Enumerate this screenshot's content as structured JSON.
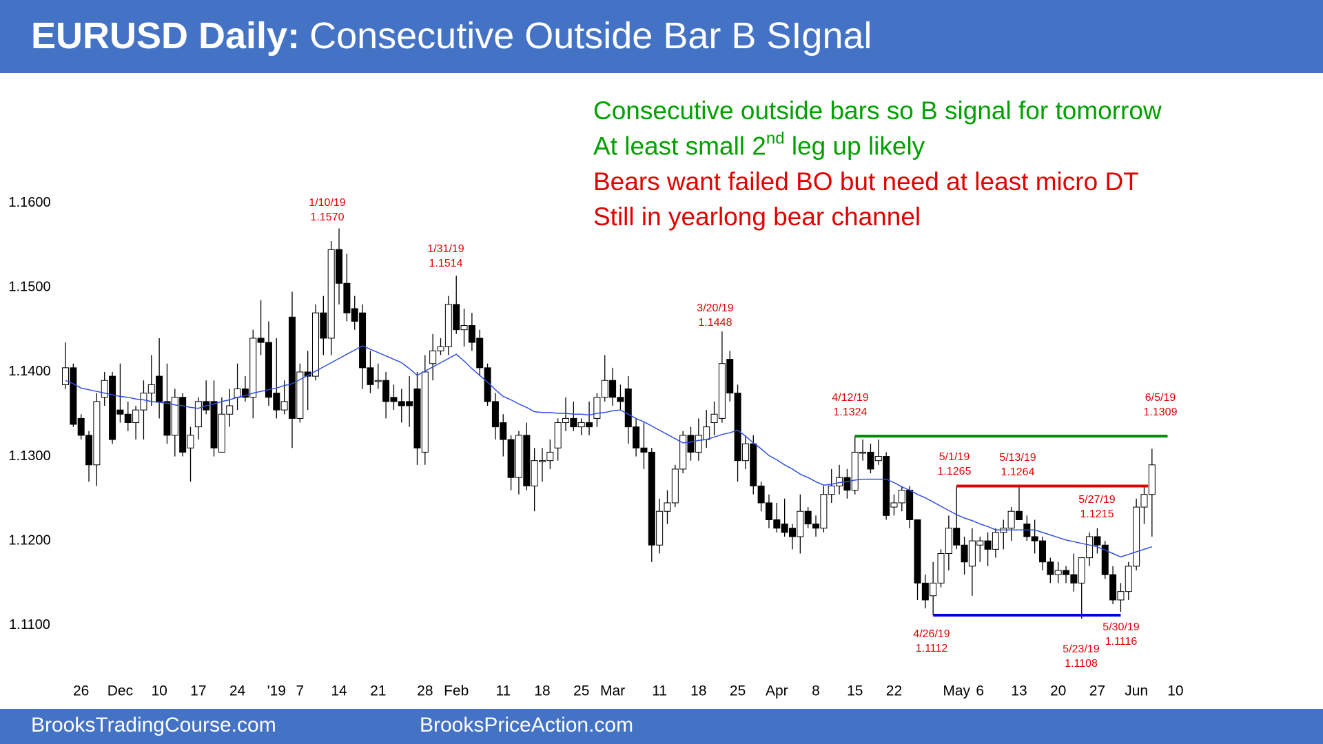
{
  "header": {
    "bold": "EURUSD Daily:",
    "rest": "Consecutive Outside Bar B SIgnal"
  },
  "footer": {
    "left": "BrooksTradingCourse.com",
    "right": "BrooksPriceAction.com"
  },
  "chart_data": {
    "type": "candlestick",
    "up_color": "#ffffff",
    "down_color": "#000000",
    "categories": [
      null,
      null,
      "26",
      null,
      null,
      null,
      null,
      "Dec",
      null,
      null,
      null,
      null,
      "10",
      null,
      null,
      null,
      null,
      "17",
      null,
      null,
      null,
      null,
      "24",
      null,
      null,
      null,
      null,
      "'19",
      null,
      null,
      "7",
      null,
      null,
      null,
      null,
      "14",
      null,
      null,
      null,
      null,
      "21",
      null,
      null,
      null,
      null,
      null,
      "28",
      null,
      null,
      null,
      "Feb",
      null,
      null,
      null,
      null,
      null,
      "11",
      null,
      null,
      null,
      null,
      "18",
      null,
      null,
      null,
      null,
      "25",
      null,
      null,
      null,
      "Mar",
      null,
      null,
      null,
      null,
      null,
      "11",
      null,
      null,
      null,
      null,
      "18",
      null,
      null,
      null,
      null,
      "25",
      null,
      null,
      null,
      null,
      "Apr",
      null,
      null,
      null,
      null,
      "8",
      null,
      null,
      null,
      null,
      "15",
      null,
      null,
      null,
      null,
      "22",
      null,
      null,
      null,
      null,
      null,
      null,
      null,
      "May",
      null,
      null,
      "6",
      null,
      null,
      null,
      null,
      "13",
      null,
      null,
      null,
      null,
      "20",
      null,
      null,
      null,
      null,
      "27",
      null,
      null,
      null,
      null,
      "Jun",
      null,
      null,
      null,
      null,
      "10"
    ],
    "open": [
      1.1385,
      1.1405,
      1.1345,
      1.1325,
      1.129,
      1.137,
      1.1395,
      1.1355,
      1.135,
      1.134,
      1.1355,
      1.1375,
      1.1395,
      1.1365,
      1.1325,
      1.137,
      1.131,
      1.1335,
      1.1365,
      1.1365,
      1.1305,
      1.135,
      1.137,
      1.138,
      1.137,
      1.144,
      1.1435,
      1.1375,
      1.1355,
      1.1465,
      1.1345,
      1.14,
      1.1395,
      1.147,
      1.144,
      1.1545,
      1.1505,
      1.1475,
      1.147,
      1.1405,
      1.139,
      1.139,
      1.137,
      1.1365,
      1.1365,
      1.138,
      1.1305,
      1.141,
      1.1425,
      1.143,
      1.148,
      1.145,
      1.1455,
      1.144,
      1.1405,
      1.1365,
      1.134,
      1.132,
      1.1275,
      1.1325,
      1.1265,
      1.1295,
      1.1295,
      1.131,
      1.134,
      1.1345,
      1.1335,
      1.134,
      1.1345,
      1.137,
      1.139,
      1.137,
      1.138,
      1.1335,
      1.131,
      1.1305,
      1.1195,
      1.1235,
      1.1245,
      1.1285,
      1.1325,
      1.1305,
      1.132,
      1.134,
      1.1345,
      1.1415,
      1.1375,
      1.1295,
      1.1315,
      1.1265,
      1.1245,
      1.1225,
      1.122,
      1.1215,
      1.1205,
      1.1235,
      1.122,
      1.1215,
      1.1255,
      1.1265,
      1.1275,
      1.126,
      1.1305,
      1.1305,
      1.1295,
      1.13,
      1.124,
      1.1245,
      1.126,
      1.1225,
      1.115,
      1.1135,
      1.115,
      1.1185,
      1.1215,
      1.1195,
      1.117,
      1.1195,
      1.12,
      1.119,
      1.121,
      1.1215,
      1.1235,
      1.122,
      1.1205,
      1.12,
      1.1175,
      1.116,
      1.1165,
      1.116,
      1.115,
      1.118,
      1.1205,
      1.1195,
      1.116,
      1.113,
      1.114,
      1.117,
      1.124,
      1.1255,
      null,
      null,
      null
    ],
    "high": [
      1.1435,
      1.141,
      1.135,
      1.133,
      1.1375,
      1.14,
      1.14,
      1.141,
      1.1365,
      1.136,
      1.139,
      1.142,
      1.144,
      1.141,
      1.138,
      1.1375,
      1.1335,
      1.137,
      1.139,
      1.139,
      1.137,
      1.138,
      1.141,
      1.1395,
      1.145,
      1.1485,
      1.146,
      1.144,
      1.139,
      1.1495,
      1.141,
      1.1425,
      1.148,
      1.149,
      1.1555,
      1.157,
      1.154,
      1.149,
      1.148,
      1.1425,
      1.141,
      1.14,
      1.1385,
      1.138,
      1.1395,
      1.14,
      1.142,
      1.1445,
      1.144,
      1.149,
      1.1514,
      1.1475,
      1.147,
      1.145,
      1.141,
      1.1375,
      1.135,
      1.1325,
      1.133,
      1.134,
      1.131,
      1.131,
      1.132,
      1.1345,
      1.137,
      1.1365,
      1.1345,
      1.1365,
      1.1375,
      1.142,
      1.1405,
      1.1385,
      1.1395,
      1.1345,
      1.134,
      1.131,
      1.125,
      1.126,
      1.129,
      1.133,
      1.1335,
      1.1345,
      1.1355,
      1.1365,
      1.1448,
      1.1425,
      1.1385,
      1.1325,
      1.1325,
      1.127,
      1.1255,
      1.1245,
      1.125,
      1.122,
      1.1255,
      1.124,
      1.123,
      1.1265,
      1.1285,
      1.129,
      1.1285,
      1.1324,
      1.132,
      1.1315,
      1.132,
      1.1305,
      1.1255,
      1.1265,
      1.1265,
      1.1225,
      1.116,
      1.1175,
      1.119,
      1.123,
      1.1265,
      1.1205,
      1.1215,
      1.1205,
      1.121,
      1.1215,
      1.1225,
      1.124,
      1.1264,
      1.123,
      1.1225,
      1.1205,
      1.118,
      1.1175,
      1.117,
      1.1185,
      1.118,
      1.121,
      1.1215,
      1.12,
      1.117,
      1.115,
      1.1175,
      1.125,
      1.1265,
      1.1309,
      null,
      null,
      null
    ],
    "low": [
      1.138,
      1.1335,
      1.132,
      1.127,
      1.1265,
      1.136,
      1.1315,
      1.134,
      1.133,
      1.132,
      1.132,
      1.136,
      1.1345,
      1.1315,
      1.13,
      1.13,
      1.127,
      1.132,
      1.135,
      1.13,
      1.1305,
      1.1335,
      1.1355,
      1.1365,
      1.1345,
      1.142,
      1.136,
      1.1345,
      1.135,
      1.131,
      1.134,
      1.1355,
      1.139,
      1.142,
      1.142,
      1.148,
      1.146,
      1.145,
      1.138,
      1.1375,
      1.138,
      1.1345,
      1.1355,
      1.134,
      1.1335,
      1.129,
      1.129,
      1.139,
      1.142,
      1.142,
      1.1445,
      1.143,
      1.1425,
      1.1395,
      1.136,
      1.132,
      1.13,
      1.126,
      1.1255,
      1.126,
      1.1235,
      1.127,
      1.1285,
      1.1295,
      1.133,
      1.133,
      1.1325,
      1.1325,
      1.1335,
      1.1365,
      1.136,
      1.1355,
      1.1315,
      1.13,
      1.1285,
      1.1175,
      1.1185,
      1.122,
      1.124,
      1.128,
      1.1295,
      1.1295,
      1.131,
      1.1325,
      1.134,
      1.1365,
      1.127,
      1.1285,
      1.1255,
      1.1235,
      1.1215,
      1.121,
      1.1205,
      1.119,
      1.1185,
      1.1215,
      1.1205,
      1.121,
      1.1245,
      1.1255,
      1.125,
      1.1255,
      1.1295,
      1.128,
      1.129,
      1.1225,
      1.123,
      1.1235,
      1.1215,
      1.113,
      1.112,
      1.1112,
      1.1145,
      1.1165,
      1.119,
      1.116,
      1.1135,
      1.1175,
      1.117,
      1.118,
      1.119,
      1.12,
      1.1225,
      1.12,
      1.1185,
      1.1165,
      1.115,
      1.115,
      1.115,
      1.114,
      1.1108,
      1.117,
      1.1185,
      1.1155,
      1.1125,
      1.1116,
      1.113,
      1.1165,
      1.122,
      1.1205,
      null,
      null,
      null
    ],
    "close": [
      1.1405,
      1.1338,
      1.1325,
      1.129,
      1.1365,
      1.139,
      1.132,
      1.135,
      1.134,
      1.1355,
      1.1375,
      1.1385,
      1.1365,
      1.1325,
      1.137,
      1.1305,
      1.1325,
      1.1365,
      1.1355,
      1.131,
      1.135,
      1.136,
      1.138,
      1.137,
      1.144,
      1.1435,
      1.137,
      1.1355,
      1.1365,
      1.1345,
      1.14,
      1.1395,
      1.147,
      1.144,
      1.1545,
      1.1505,
      1.147,
      1.146,
      1.1405,
      1.1385,
      1.139,
      1.1365,
      1.1365,
      1.136,
      1.136,
      1.131,
      1.14,
      1.1425,
      1.143,
      1.148,
      1.145,
      1.1455,
      1.1435,
      1.1405,
      1.1365,
      1.1335,
      1.132,
      1.1275,
      1.1325,
      1.1265,
      1.1295,
      1.1295,
      1.1305,
      1.134,
      1.1345,
      1.1335,
      1.134,
      1.1335,
      1.137,
      1.139,
      1.137,
      1.1365,
      1.1335,
      1.131,
      1.1305,
      1.1195,
      1.1235,
      1.1245,
      1.1285,
      1.1325,
      1.1305,
      1.1325,
      1.1335,
      1.135,
      1.141,
      1.1375,
      1.1295,
      1.1315,
      1.1265,
      1.1245,
      1.1225,
      1.1215,
      1.121,
      1.1205,
      1.1235,
      1.122,
      1.1215,
      1.1255,
      1.1265,
      1.1275,
      1.126,
      1.1305,
      1.1305,
      1.1285,
      1.13,
      1.123,
      1.1245,
      1.126,
      1.1225,
      1.115,
      1.113,
      1.115,
      1.1185,
      1.1215,
      1.1195,
      1.1175,
      1.12,
      1.12,
      1.119,
      1.121,
      1.1215,
      1.1235,
      1.1225,
      1.1205,
      1.12,
      1.1175,
      1.116,
      1.1165,
      1.116,
      1.115,
      1.118,
      1.1205,
      1.1195,
      1.116,
      1.113,
      1.114,
      1.117,
      1.124,
      1.1255,
      1.129,
      null,
      null,
      null
    ],
    "ma": {
      "color": "#2f4fe0",
      "values": [
        1.139,
        1.1386,
        1.1381,
        1.1379,
        1.1377,
        1.1375,
        1.1373,
        1.1371,
        1.137,
        1.1368,
        1.1367,
        1.1365,
        1.1364,
        1.1363,
        1.1361,
        1.136,
        1.1358,
        1.1357,
        1.136,
        1.1362,
        1.1365,
        1.1367,
        1.137,
        1.1372,
        1.1375,
        1.1377,
        1.1379,
        1.1381,
        1.1384,
        1.1386,
        1.1391,
        1.1396,
        1.1401,
        1.1406,
        1.1411,
        1.1416,
        1.1421,
        1.1426,
        1.1431,
        1.1427,
        1.1423,
        1.1419,
        1.1415,
        1.1411,
        1.1404,
        1.1396,
        1.1401,
        1.1406,
        1.1411,
        1.1416,
        1.1421,
        1.1413,
        1.1404,
        1.1396,
        1.1388,
        1.1379,
        1.1371,
        1.1367,
        1.1362,
        1.1358,
        1.1353,
        1.1352,
        1.1352,
        1.1351,
        1.1351,
        1.135,
        1.135,
        1.1349,
        1.1351,
        1.1352,
        1.1354,
        1.1355,
        1.135,
        1.1345,
        1.1341,
        1.1336,
        1.1331,
        1.1326,
        1.1321,
        1.1316,
        1.1317,
        1.1319,
        1.132,
        1.1323,
        1.1326,
        1.1328,
        1.1331,
        1.1324,
        1.1316,
        1.1309,
        1.1301,
        1.1296,
        1.129,
        1.1285,
        1.1279,
        1.1275,
        1.127,
        1.1266,
        1.1267,
        1.1269,
        1.127,
        1.1272,
        1.1273,
        1.1273,
        1.1273,
        1.1273,
        1.1269,
        1.1264,
        1.126,
        1.1255,
        1.1251,
        1.1246,
        1.1241,
        1.1236,
        1.1231,
        1.1227,
        1.1224,
        1.122,
        1.1217,
        1.1213,
        1.1213,
        1.1213,
        1.1213,
        1.1213,
        1.1213,
        1.121,
        1.1207,
        1.1204,
        1.1201,
        1.1199,
        1.1197,
        1.1195,
        1.1193,
        1.1189,
        1.1185,
        1.1181,
        1.1184,
        1.1187,
        1.119,
        1.1193,
        null,
        null,
        null
      ]
    },
    "levels": [
      {
        "value": 1.1324,
        "color": "#008a00"
      },
      {
        "value": 1.1265,
        "color": "#e00000"
      },
      {
        "value": 1.1112,
        "color": "#0000e6"
      }
    ],
    "annotations": [
      {
        "date": "1/10/19",
        "price": "1.1570"
      },
      {
        "date": "1/31/19",
        "price": "1.1514"
      },
      {
        "date": "3/20/19",
        "price": "1.1448"
      },
      {
        "date": "4/12/19",
        "price": "1.1324"
      },
      {
        "date": "6/5/19",
        "price": "1.1309"
      },
      {
        "date": "5/1/19",
        "price": "1.1265"
      },
      {
        "date": "5/13/19",
        "price": "1.1264"
      },
      {
        "date": "5/27/19",
        "price": "1.1215"
      },
      {
        "date": "4/26/19",
        "price": "1.1112"
      },
      {
        "date": "5/23/19",
        "price": "1.1108"
      },
      {
        "date": "5/30/19",
        "price": "1.1116"
      }
    ],
    "annotation_color": "#e00000",
    "notes": [
      {
        "text": "Consecutive outside bars so B signal for tomorrow",
        "color": "#00a000"
      },
      {
        "text": "At least small 2",
        "sup": "nd",
        "after": " leg up likely",
        "color": "#00a000"
      },
      {
        "text": "Bears want failed BO but need at least micro DT",
        "color": "#e00000"
      },
      {
        "text": "Still in yearlong bear channel",
        "color": "#e00000"
      }
    ],
    "ylim": [
      1.1041,
      1.1741
    ],
    "yticks": [
      {
        "value": 1.11,
        "label": "1.1100"
      },
      {
        "value": 1.12,
        "label": "1.1200"
      },
      {
        "value": 1.13,
        "label": "1.1300"
      },
      {
        "value": 1.14,
        "label": "1.1400"
      },
      {
        "value": 1.15,
        "label": "1.1500"
      },
      {
        "value": 1.16,
        "label": "1.1600"
      }
    ]
  }
}
